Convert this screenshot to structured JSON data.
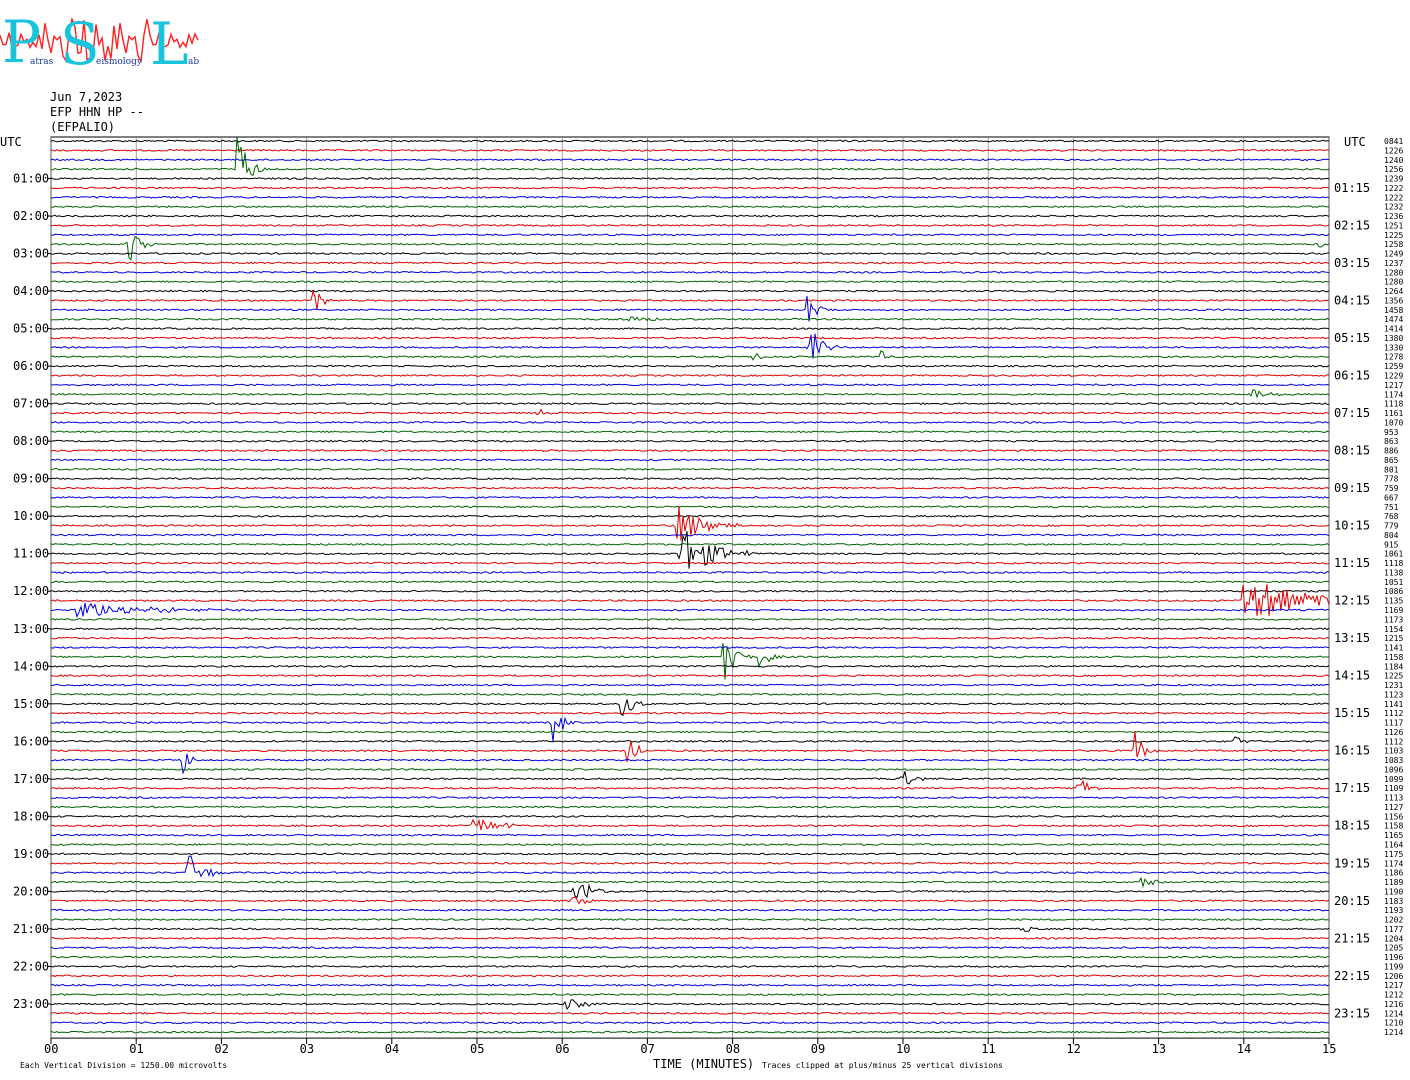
{
  "logo": {
    "letters": [
      "P",
      "S",
      "L"
    ],
    "words": [
      "atras",
      "eismology",
      "ab"
    ],
    "colors": {
      "letters": "#19c3dc",
      "wave": "#ff2020",
      "words": "#1a3aa0"
    }
  },
  "header": {
    "date": "Jun 7,2023",
    "channel": "EFP HHN HP --",
    "station": "(EFPALIO)"
  },
  "colors": {
    "black": "#000000",
    "red": "#e00000",
    "blue": "#0000e0",
    "green": "#006400",
    "grid": "#7a7a7a"
  },
  "chart_data": {
    "type": "line",
    "subtype": "helicorder",
    "xlabel": "TIME (MINUTES)",
    "x_range": [
      0,
      15
    ],
    "x_ticks": [
      "00",
      "01",
      "02",
      "03",
      "04",
      "05",
      "06",
      "07",
      "08",
      "09",
      "10",
      "11",
      "12",
      "13",
      "14",
      "15"
    ],
    "left_axis_label": "UTC",
    "right_axis_label": "UTC",
    "lines_per_hour": 4,
    "minutes_per_line": 15,
    "line_color_cycle": [
      "black",
      "red",
      "blue",
      "green"
    ],
    "left_hour_labels": [
      "01:00",
      "02:00",
      "03:00",
      "04:00",
      "05:00",
      "06:00",
      "07:00",
      "08:00",
      "09:00",
      "10:00",
      "11:00",
      "12:00",
      "13:00",
      "14:00",
      "15:00",
      "16:00",
      "17:00",
      "18:00",
      "19:00",
      "20:00",
      "21:00",
      "22:00",
      "23:00"
    ],
    "right_hour_labels": [
      "01:15",
      "02:15",
      "03:15",
      "04:15",
      "05:15",
      "06:15",
      "07:15",
      "08:15",
      "09:15",
      "10:15",
      "11:15",
      "12:15",
      "13:15",
      "14:15",
      "15:15",
      "16:15",
      "17:15",
      "18:15",
      "19:15",
      "20:15",
      "21:15",
      "22:15",
      "23:15"
    ],
    "line_counts": [
      "0841",
      "1226",
      "1240",
      "1256",
      "1239",
      "1222",
      "1222",
      "1232",
      "1236",
      "1251",
      "1225",
      "1258",
      "1249",
      "1237",
      "1280",
      "1280",
      "1264",
      "1356",
      "1458",
      "1474",
      "1414",
      "1380",
      "1330",
      "1278",
      "1259",
      "1229",
      "1217",
      "1174",
      "1118",
      "1161",
      "1070",
      "953",
      "863",
      "886",
      "865",
      "801",
      "778",
      "759",
      "667",
      "751",
      "768",
      "779",
      "804",
      "915",
      "1061",
      "1118",
      "1138",
      "1051",
      "1086",
      "1135",
      "1169",
      "1173",
      "1154",
      "1215",
      "1141",
      "1158",
      "1184",
      "1225",
      "1231",
      "1123",
      "1141",
      "1112",
      "1117",
      "1126",
      "1112",
      "1103",
      "1083",
      "1096",
      "1099",
      "1109",
      "1113",
      "1127",
      "1156",
      "1158",
      "1165",
      "1164",
      "1175",
      "1174",
      "1186",
      "1189",
      "1190",
      "1183",
      "1193",
      "1202",
      "1177",
      "1204",
      "1205",
      "1196",
      "1199",
      "1206",
      "1217",
      "1212",
      "1216",
      "1214",
      "1210",
      "1214"
    ],
    "events": [
      {
        "line": 3,
        "minute": 2.18,
        "amplitude": 42,
        "duration": 0.35
      },
      {
        "line": 11,
        "minute": 0.92,
        "amplitude": 28,
        "duration": 0.3
      },
      {
        "line": 11,
        "minute": 14.9,
        "amplitude": 5,
        "duration": 0.2
      },
      {
        "line": 17,
        "minute": 3.08,
        "amplitude": 20,
        "duration": 0.25
      },
      {
        "line": 18,
        "minute": 8.88,
        "amplitude": 20,
        "duration": 0.3
      },
      {
        "line": 19,
        "minute": 6.8,
        "amplitude": 3,
        "duration": 1.0
      },
      {
        "line": 22,
        "minute": 8.9,
        "amplitude": 28,
        "duration": 0.35
      },
      {
        "line": 23,
        "minute": 8.25,
        "amplitude": 7,
        "duration": 0.2
      },
      {
        "line": 23,
        "minute": 9.75,
        "amplitude": 10,
        "duration": 0.2
      },
      {
        "line": 27,
        "minute": 14.1,
        "amplitude": 5,
        "duration": 0.6
      },
      {
        "line": 29,
        "minute": 5.7,
        "amplitude": 5,
        "duration": 0.3
      },
      {
        "line": 41,
        "minute": 7.35,
        "amplitude": 22,
        "duration": 0.8
      },
      {
        "line": 44,
        "minute": 7.38,
        "amplitude": 32,
        "duration": 0.9
      },
      {
        "line": 50,
        "minute": 0.3,
        "amplitude": 9,
        "duration": 2.2
      },
      {
        "line": 49,
        "minute": 14.0,
        "amplitude": 24,
        "duration": 2.1
      },
      {
        "line": 55,
        "minute": 7.9,
        "amplitude": 26,
        "duration": 0.35
      },
      {
        "line": 55,
        "minute": 8.32,
        "amplitude": 15,
        "duration": 0.3
      },
      {
        "line": 60,
        "minute": 6.7,
        "amplitude": 18,
        "duration": 0.3
      },
      {
        "line": 62,
        "minute": 5.88,
        "amplitude": 26,
        "duration": 0.3
      },
      {
        "line": 65,
        "minute": 6.75,
        "amplitude": 20,
        "duration": 0.3
      },
      {
        "line": 65,
        "minute": 12.72,
        "amplitude": 20,
        "duration": 0.3
      },
      {
        "line": 66,
        "minute": 1.55,
        "amplitude": 16,
        "duration": 0.25
      },
      {
        "line": 64,
        "minute": 13.9,
        "amplitude": 8,
        "duration": 0.3
      },
      {
        "line": 68,
        "minute": 10.0,
        "amplitude": 16,
        "duration": 0.3
      },
      {
        "line": 69,
        "minute": 12.05,
        "amplitude": 18,
        "duration": 0.3
      },
      {
        "line": 73,
        "minute": 4.95,
        "amplitude": 10,
        "duration": 0.8
      },
      {
        "line": 78,
        "minute": 1.6,
        "amplitude": 22,
        "duration": 0.5
      },
      {
        "line": 80,
        "minute": 6.15,
        "amplitude": 22,
        "duration": 0.4
      },
      {
        "line": 79,
        "minute": 12.8,
        "amplitude": 7,
        "duration": 0.4
      },
      {
        "line": 81,
        "minute": 6.1,
        "amplitude": 5,
        "duration": 0.7
      },
      {
        "line": 84,
        "minute": 11.4,
        "amplitude": 5,
        "duration": 0.3
      },
      {
        "line": 92,
        "minute": 6.05,
        "amplitude": 5,
        "duration": 0.8
      }
    ],
    "footer_left": "Each Vertical Division = 1250.00 microvolts",
    "footer_right": "Traces clipped at plus/minus 25 vertical divisions",
    "grid": true
  }
}
